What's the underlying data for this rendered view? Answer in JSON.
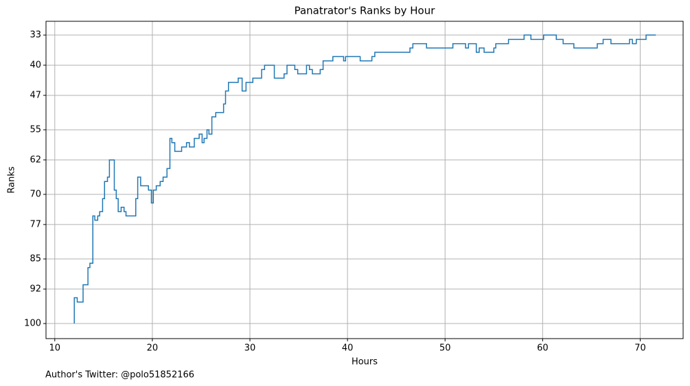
{
  "chart_data": {
    "type": "step",
    "title": "Panatrator's Ranks by Hour",
    "xlabel": "Hours",
    "ylabel": "Ranks",
    "footer": "Author's Twitter: @polo51852166",
    "x": [
      12.0,
      12.0,
      12.3,
      12.9,
      13.4,
      13.6,
      13.9,
      14.1,
      14.4,
      14.6,
      14.9,
      15.1,
      15.4,
      15.6,
      16.1,
      16.3,
      16.5,
      16.8,
      17.1,
      17.3,
      18.3,
      18.5,
      18.8,
      19.6,
      19.9,
      20.1,
      20.4,
      20.8,
      21.1,
      21.5,
      21.8,
      22.0,
      22.3,
      23.0,
      23.5,
      23.8,
      24.3,
      24.8,
      25.1,
      25.3,
      25.6,
      25.8,
      26.1,
      26.5,
      27.3,
      27.5,
      27.8,
      28.8,
      29.2,
      29.6,
      30.3,
      31.2,
      31.5,
      32.5,
      33.5,
      33.8,
      34.6,
      34.9,
      35.8,
      36.1,
      36.4,
      37.2,
      37.5,
      38.5,
      39.6,
      39.8,
      41.3,
      42.5,
      42.8,
      46.4,
      46.7,
      48.1,
      50.8,
      52.1,
      52.4,
      53.2,
      53.5,
      54.0,
      55.0,
      55.2,
      56.5,
      58.1,
      58.8,
      60.1,
      61.4,
      62.1,
      63.2,
      65.6,
      66.2,
      67.0,
      68.9,
      69.2,
      69.6,
      70.6,
      71.6
    ],
    "series": [
      {
        "color": "#1f77b4",
        "values": [
          100,
          94,
          95,
          91,
          87,
          86,
          75,
          76,
          75,
          74,
          71,
          67,
          66,
          62,
          69,
          71,
          74,
          73,
          74,
          75,
          71,
          66,
          68,
          69,
          72,
          69,
          68,
          67,
          66,
          64,
          57,
          58,
          60,
          59,
          58,
          59,
          57,
          56,
          58,
          57,
          55,
          56,
          52,
          51,
          49,
          46,
          44,
          43,
          46,
          44,
          43,
          41,
          40,
          43,
          42,
          40,
          41,
          42,
          40,
          41,
          42,
          41,
          39,
          38,
          39,
          38,
          39,
          38,
          37,
          36,
          35,
          36,
          35,
          36,
          35,
          37,
          36,
          37,
          36,
          35,
          34,
          33,
          34,
          33,
          34,
          35,
          36,
          35,
          34,
          35,
          34,
          35,
          34,
          33,
          33
        ]
      }
    ],
    "xlim": [
      9.1,
      74.4
    ],
    "xticks": [
      10,
      20,
      30,
      40,
      50,
      60,
      70
    ],
    "ylim": [
      103.5,
      29.8
    ],
    "yticks": [
      33,
      40,
      47,
      55,
      62,
      70,
      77,
      85,
      92,
      100
    ],
    "grid": true
  }
}
